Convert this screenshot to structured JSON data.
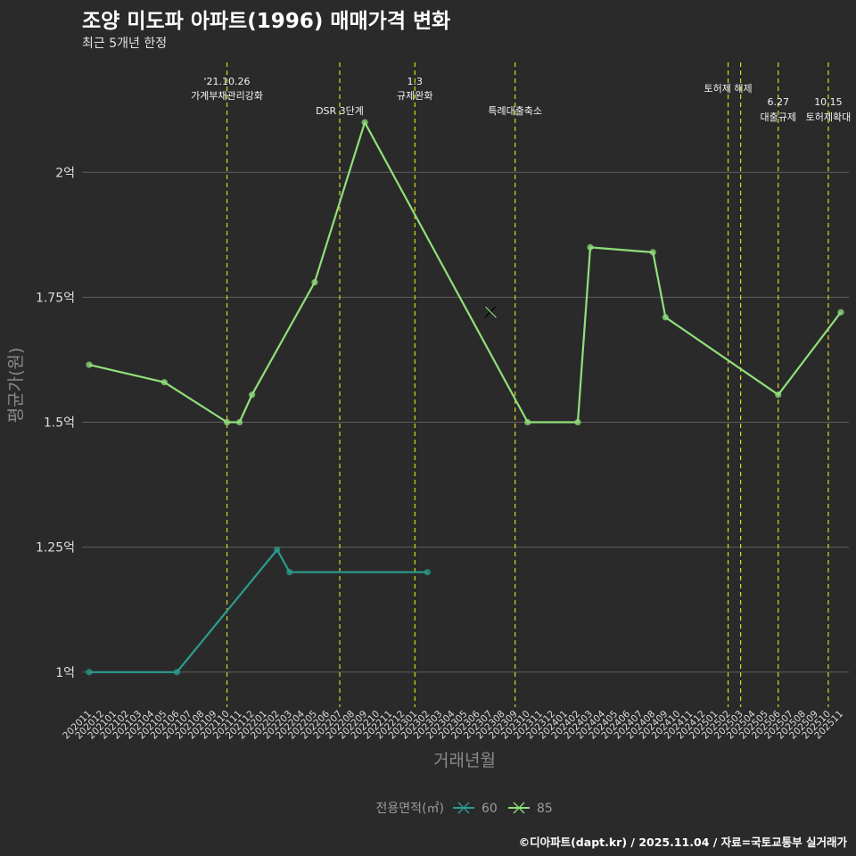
{
  "title": "조양 미도파 아파트(1996) 매매가격 변화",
  "subtitle": "최근 5개년 한정",
  "caption": "©디아파트(dapt.kr) / 2025.11.04 / 자료=국토교통부 실거래가",
  "chart_data": {
    "type": "line",
    "title": "조양 미도파 아파트(1996) 매매가격 변화",
    "subtitle": "최근 5개년 한정",
    "xlabel": "거래년월",
    "ylabel": "평균가(원)",
    "ylim": [
      0.93,
      2.22
    ],
    "yticks": [
      {
        "value": 1.0,
        "label": "1억"
      },
      {
        "value": 1.25,
        "label": "1.25억"
      },
      {
        "value": 1.5,
        "label": "1.5억"
      },
      {
        "value": 1.75,
        "label": "1.75억"
      },
      {
        "value": 2.0,
        "label": "2억"
      }
    ],
    "categories": [
      "202011",
      "202012",
      "202101",
      "202102",
      "202103",
      "202104",
      "202105",
      "202106",
      "202107",
      "202108",
      "202109",
      "202110",
      "202111",
      "202112",
      "202201",
      "202202",
      "202203",
      "202204",
      "202205",
      "202206",
      "202207",
      "202208",
      "202209",
      "202210",
      "202211",
      "202212",
      "202301",
      "202302",
      "202303",
      "202304",
      "202305",
      "202306",
      "202307",
      "202308",
      "202309",
      "202310",
      "202311",
      "202312",
      "202401",
      "202402",
      "202403",
      "202404",
      "202405",
      "202406",
      "202407",
      "202408",
      "202409",
      "202410",
      "202411",
      "202412",
      "202501",
      "202502",
      "202503",
      "202504",
      "202505",
      "202506",
      "202507",
      "202508",
      "202509",
      "202510",
      "202511"
    ],
    "series": [
      {
        "name": "60",
        "color": "#2a9d8f",
        "points": [
          {
            "x": "202011",
            "y": 1.0
          },
          {
            "x": "202106",
            "y": 1.0
          },
          {
            "x": "202202",
            "y": 1.245
          },
          {
            "x": "202203",
            "y": 1.2
          },
          {
            "x": "202302",
            "y": 1.2
          }
        ]
      },
      {
        "name": "85",
        "color": "#8fe07a",
        "points": [
          {
            "x": "202011",
            "y": 1.615
          },
          {
            "x": "202105",
            "y": 1.58
          },
          {
            "x": "202110",
            "y": 1.5
          },
          {
            "x": "202111",
            "y": 1.5
          },
          {
            "x": "202112",
            "y": 1.555
          },
          {
            "x": "202205",
            "y": 1.78
          },
          {
            "x": "202209",
            "y": 2.1
          },
          {
            "x": "202310",
            "y": 1.5
          },
          {
            "x": "202402",
            "y": 1.5
          },
          {
            "x": "202403",
            "y": 1.85
          },
          {
            "x": "202408",
            "y": 1.84
          },
          {
            "x": "202409",
            "y": 1.71
          },
          {
            "x": "202506",
            "y": 1.555
          },
          {
            "x": "202511",
            "y": 1.72
          }
        ],
        "highlight": {
          "x": "202307",
          "y": 1.72
        }
      }
    ],
    "events": [
      {
        "x": "202110",
        "lines": [
          "'21.10.26",
          "가계부채관리강화"
        ],
        "row": 0
      },
      {
        "x": "202207",
        "lines": [
          "DSR 3단계"
        ],
        "row": 2
      },
      {
        "x": "202301",
        "lines": [
          "1.3",
          "규제완화"
        ],
        "row": 0
      },
      {
        "x": "202309",
        "lines": [
          "특례대출축소"
        ],
        "row": 2
      },
      {
        "x": "202502",
        "lines": [
          "토허제 해제"
        ],
        "row": 1
      },
      {
        "x": "202503",
        "lines": [],
        "row": 1
      },
      {
        "x": "202506",
        "lines": [
          "6.27",
          "대출규제"
        ],
        "row": 1
      },
      {
        "x": "202510",
        "lines": [
          "10.15",
          "토허제확대"
        ],
        "row": 1
      }
    ],
    "legend": {
      "title": "전용면적(㎡)",
      "position": "bottom"
    },
    "grid": true
  }
}
